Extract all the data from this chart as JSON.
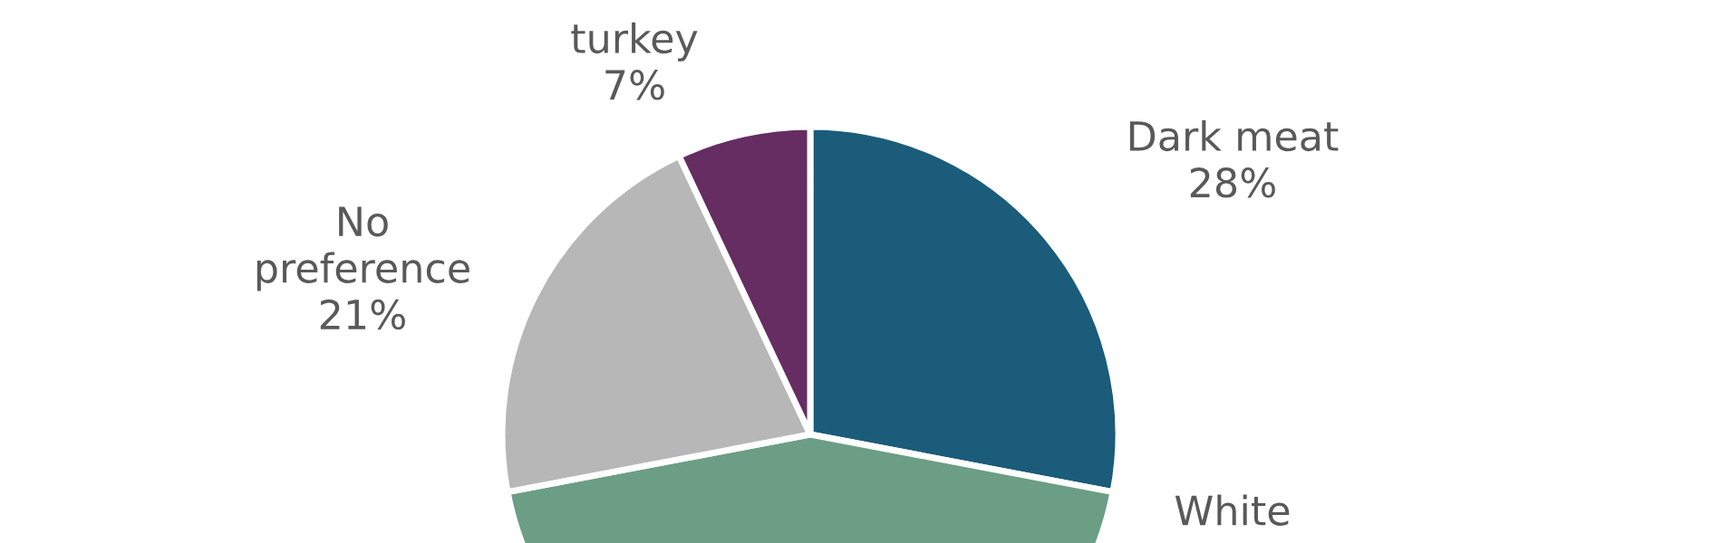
{
  "chart_data": {
    "type": "pie",
    "categories": [
      "Dark meat",
      "White",
      "No preference",
      "turkey"
    ],
    "values": [
      28,
      44,
      21,
      7
    ],
    "value_labels": [
      "28%",
      null,
      "21%",
      "7%"
    ],
    "colors": [
      "#1a5c7a",
      "#6b9e85",
      "#b7b7b7",
      "#652d62"
    ]
  }
}
